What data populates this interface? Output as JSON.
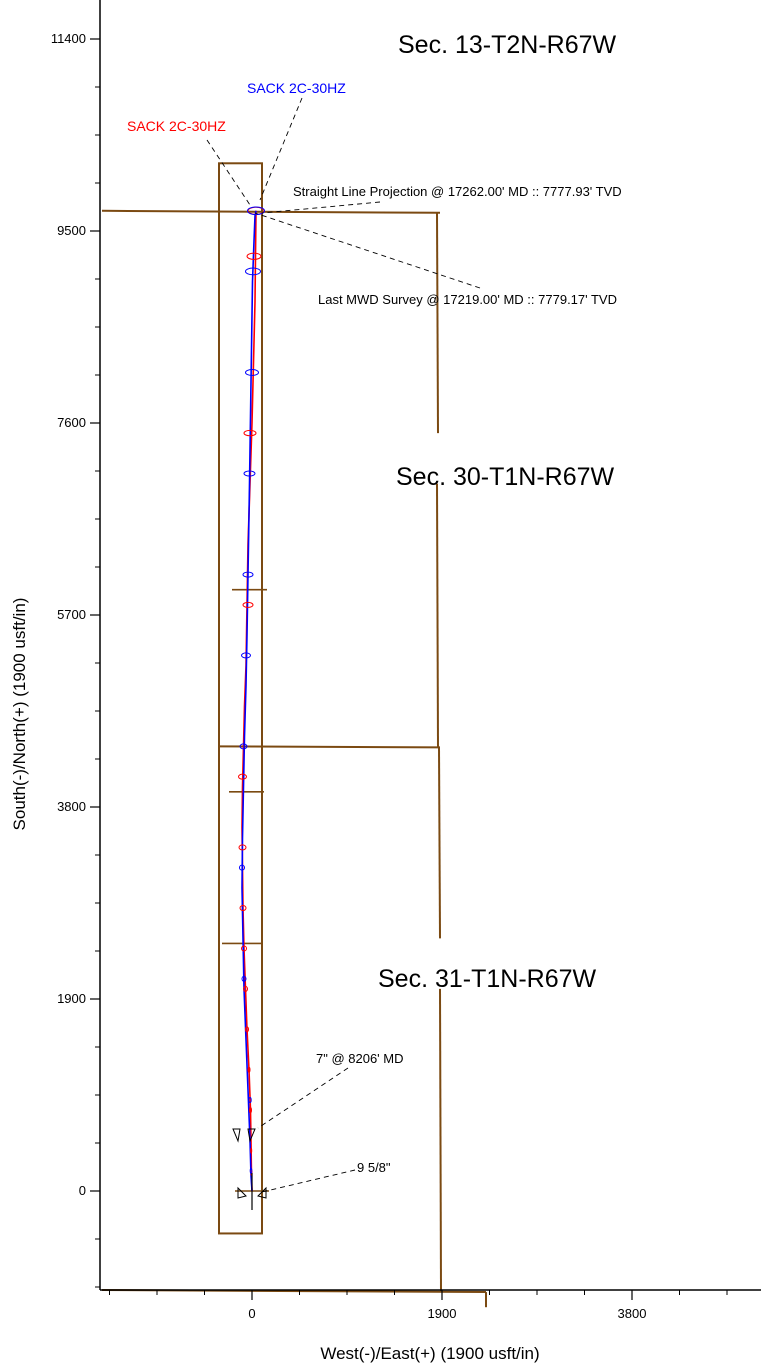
{
  "chart_data": {
    "type": "line",
    "title": "",
    "xlabel": "West(-)/East(+) (1900 usft/in)",
    "ylabel": "South(-)/North(+) (1900 usft/in)",
    "xlim": [
      -1500,
      4900
    ],
    "ylim": [
      -1150,
      11800
    ],
    "x_ticks": [
      0,
      1900,
      3800
    ],
    "x_tick_labels": [
      "0",
      "1900",
      "3800"
    ],
    "y_ticks": [
      0,
      1900,
      3800,
      5700,
      7600,
      9500,
      11400
    ],
    "y_tick_labels": [
      "0",
      "1900",
      "3800",
      "5700",
      "7600",
      "9500",
      "11400"
    ],
    "grid": false,
    "colors": {
      "boundary": "#7b4a12",
      "plan": "#ff0000",
      "actual": "#0000ff",
      "text": "#000000"
    },
    "series": [
      {
        "name": "SACK 2C-30HZ",
        "color": "#ff0000",
        "x": [
          0,
          -5,
          -10,
          -15,
          -30,
          -50,
          -65,
          -80,
          -90,
          -95,
          -100,
          -95,
          -85,
          -75,
          -60,
          -50,
          -40,
          -20,
          0,
          15,
          30,
          40
        ],
        "y": [
          0,
          150,
          500,
          800,
          1200,
          1600,
          2000,
          2400,
          2800,
          3200,
          3600,
          4000,
          4400,
          4800,
          5200,
          5800,
          6400,
          7000,
          7600,
          8200,
          8800,
          9700
        ]
      },
      {
        "name": "SACK 2C-30HZ",
        "color": "#0000ff",
        "x": [
          0,
          -10,
          -20,
          -40,
          -60,
          -80,
          -90,
          -100,
          -95,
          -85,
          -75,
          -60,
          -50,
          -40,
          -25,
          -10,
          5,
          20,
          30,
          40
        ],
        "y": [
          0,
          150,
          500,
          1000,
          1500,
          2000,
          2500,
          3000,
          3500,
          4000,
          4500,
          5000,
          5500,
          6100,
          7000,
          8000,
          9000,
          9400,
          9650,
          9700
        ]
      }
    ],
    "ellipses": [
      {
        "series": 0,
        "y": [
          180,
          400,
          800,
          1200,
          1600,
          2000,
          2400,
          2800,
          3400,
          4100,
          5800,
          7500,
          9250,
          9700
        ],
        "x": [
          -5,
          -8,
          -15,
          -30,
          -50,
          -65,
          -80,
          -90,
          -95,
          -95,
          -40,
          -20,
          20,
          40
        ],
        "rx": [
          5,
          5,
          10,
          10,
          15,
          20,
          25,
          30,
          35,
          40,
          50,
          60,
          70,
          80
        ]
      },
      {
        "series": 1,
        "y": [
          200,
          900,
          2100,
          3200,
          4400,
          5300,
          6100,
          7100,
          8100,
          9100,
          9700
        ],
        "x": [
          -10,
          -20,
          -80,
          -100,
          -85,
          -60,
          -40,
          -25,
          0,
          10,
          40
        ],
        "rx": [
          8,
          12,
          20,
          25,
          35,
          45,
          50,
          55,
          65,
          75,
          85
        ]
      }
    ],
    "annotations": {
      "well_label_blue": "SACK 2C-30HZ",
      "well_label_red": "SACK 2C-30HZ",
      "projection": "Straight Line Projection @ 17262.00' MD :: 7777.93' TVD",
      "last_survey": "Last MWD Survey @ 17219.00' MD :: 7779.17' TVD",
      "casing_7": "7\" @ 8206' MD",
      "casing_958": "9 5/8\""
    },
    "sections": [
      {
        "label": "Sec. 13-T2N-R67W"
      },
      {
        "label": "Sec. 30-T1N-R67W"
      },
      {
        "label": "Sec. 31-T1N-R67W"
      }
    ],
    "boundaries": {
      "lease_box": {
        "x": [
          -330,
          100
        ],
        "y": [
          -420,
          10170
        ]
      },
      "horizontal_lines": [
        {
          "x": [
            -1500,
            1880
          ],
          "y": [
            9700,
            9680
          ]
        },
        {
          "x": [
            -330,
            1880
          ],
          "y": [
            4400,
            4390
          ]
        },
        {
          "x": [
            -1500,
            2340
          ],
          "y": [
            -980,
            -1000
          ]
        }
      ],
      "vertical_lines": [
        {
          "x": [
            1850,
            1860
          ],
          "y": [
            9680,
            7500
          ]
        },
        {
          "x": [
            1850,
            1860
          ],
          "y": [
            7000,
            4390
          ]
        },
        {
          "x": [
            1870,
            1880
          ],
          "y": [
            4390,
            2500
          ]
        },
        {
          "x": [
            1880,
            1890
          ],
          "y": [
            2000,
            -1000
          ]
        },
        {
          "x": [
            2340,
            2340
          ],
          "y": [
            -1000,
            -1150
          ]
        }
      ],
      "hardlines": [
        {
          "x": [
            -200,
            150
          ],
          "y": [
            5950,
            5950
          ]
        },
        {
          "x": [
            -230,
            120
          ],
          "y": [
            3950,
            3950
          ]
        },
        {
          "x": [
            -300,
            100
          ],
          "y": [
            2450,
            2450
          ]
        },
        {
          "x": [
            -170,
            170
          ],
          "y": [
            0,
            0
          ]
        }
      ]
    }
  }
}
